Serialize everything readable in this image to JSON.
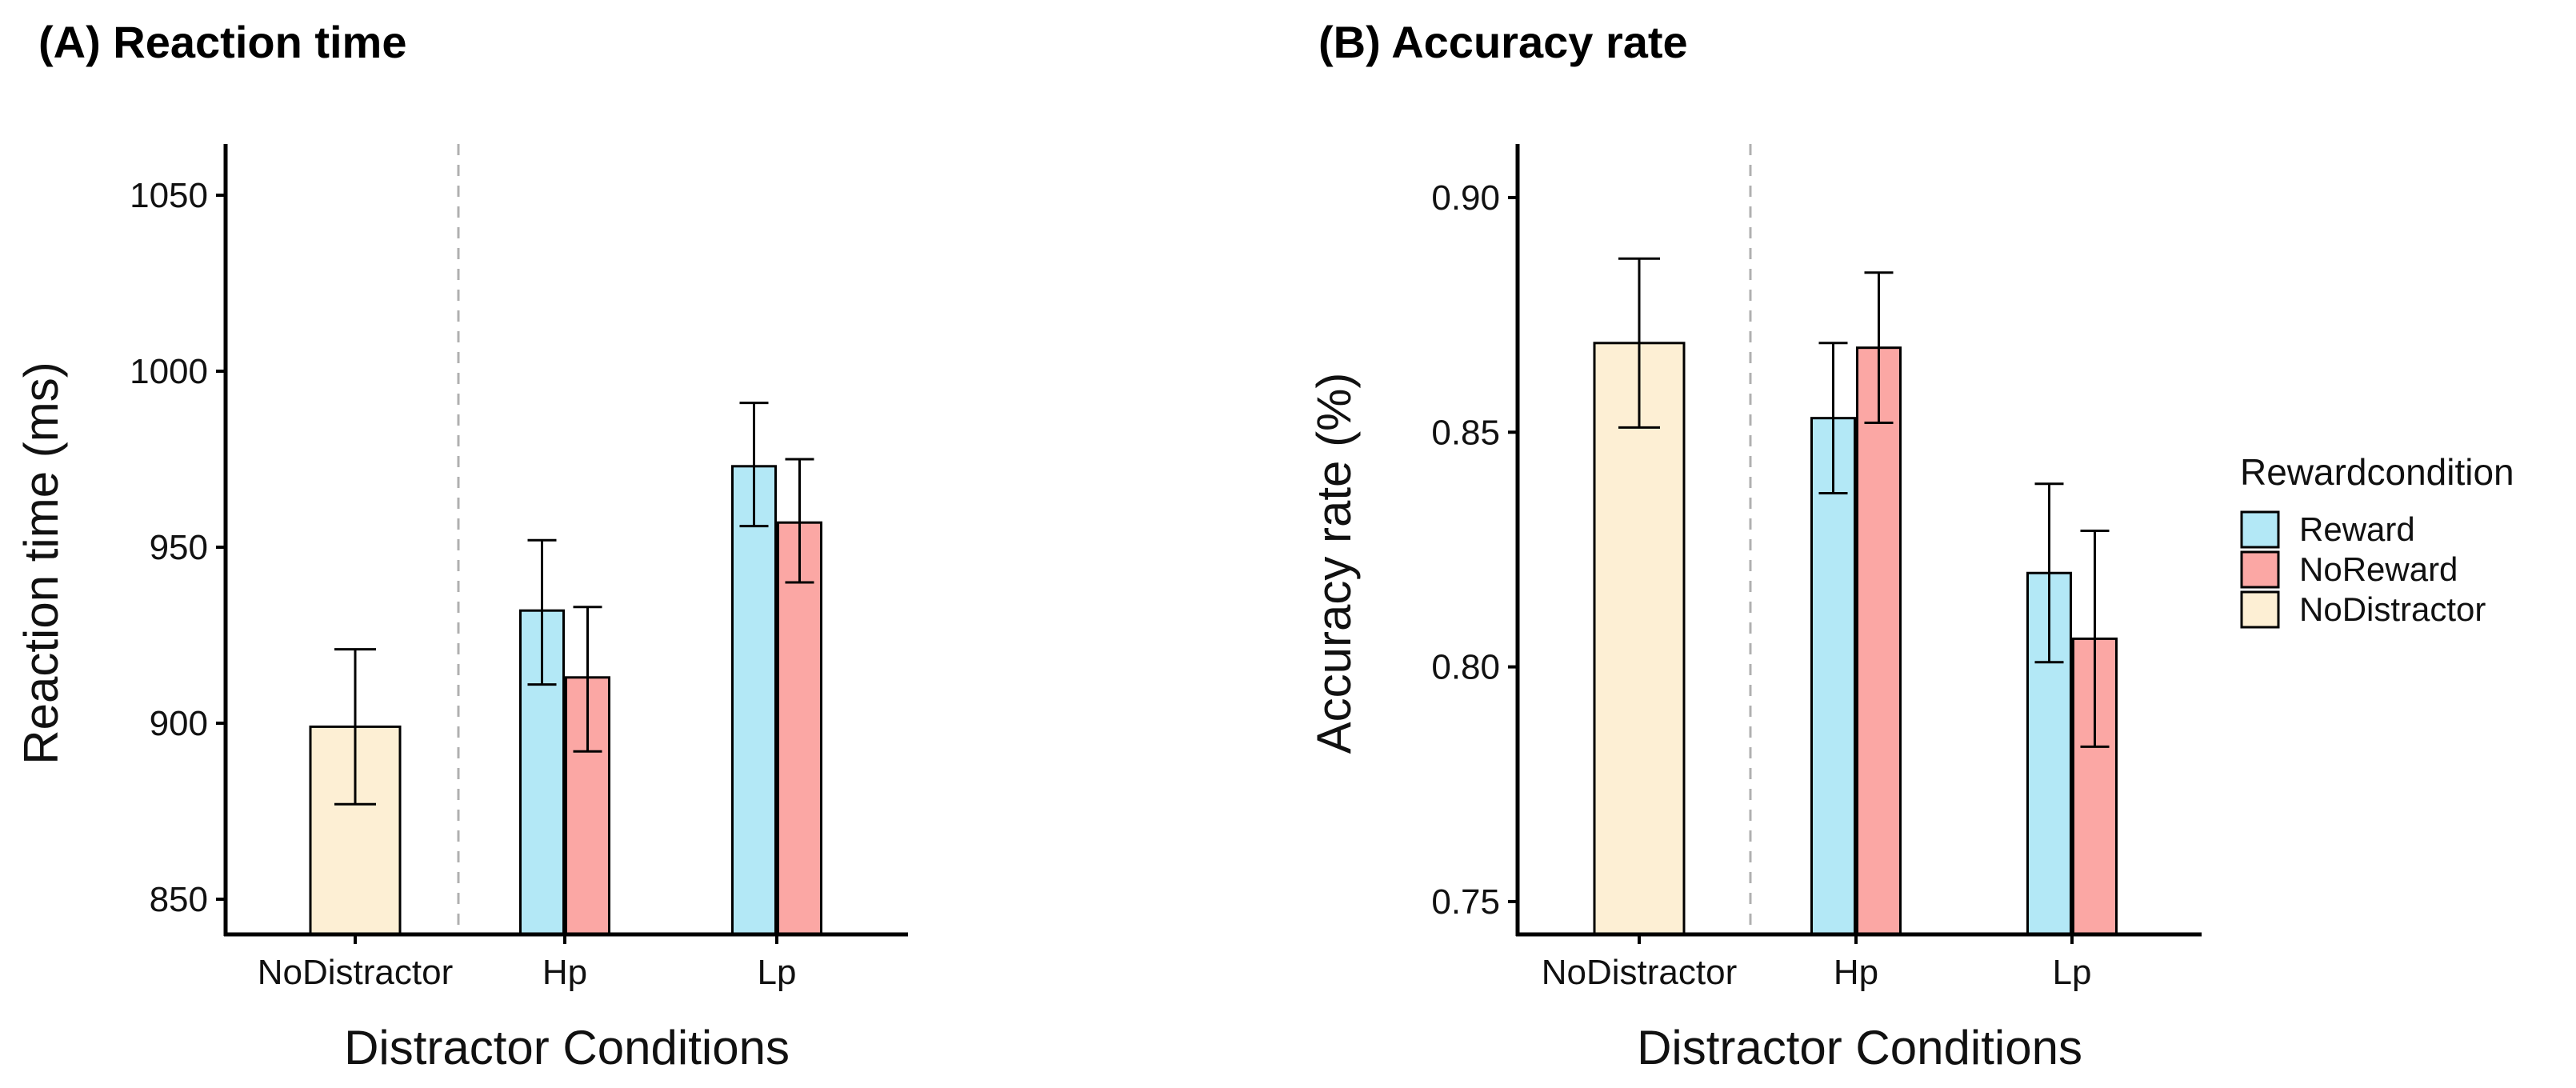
{
  "colors": {
    "Reward": "#b3e8f6",
    "NoReward": "#fba7a4",
    "NoDistractor": "#fdefd4"
  },
  "legend": {
    "title": "Rewardcondition",
    "position": "right",
    "items": [
      {
        "label": "Reward",
        "color_key": "Reward"
      },
      {
        "label": "NoReward",
        "color_key": "NoReward"
      },
      {
        "label": "NoDistractor",
        "color_key": "NoDistractor"
      }
    ]
  },
  "chart_data": [
    {
      "type": "bar",
      "title": "(A) Reaction time",
      "xlabel": "Distractor Conditions",
      "ylabel": "Reaction time (ms)",
      "ylim": [
        840,
        1060
      ],
      "yticks": [
        850,
        900,
        950,
        1000,
        1050
      ],
      "ytick_labels": [
        "850",
        "900",
        "950",
        "1000",
        "1050"
      ],
      "grid": false,
      "categories": [
        "NoDistractor",
        "Hp",
        "Lp"
      ],
      "bars": [
        {
          "category": "NoDistractor",
          "series": "NoDistractor",
          "value": 899,
          "err_low": 877,
          "err_high": 921
        },
        {
          "category": "Hp",
          "series": "Reward",
          "value": 932,
          "err_low": 911,
          "err_high": 952
        },
        {
          "category": "Hp",
          "series": "NoReward",
          "value": 913,
          "err_low": 892,
          "err_high": 933
        },
        {
          "category": "Lp",
          "series": "Reward",
          "value": 973,
          "err_low": 956,
          "err_high": 991
        },
        {
          "category": "Lp",
          "series": "NoReward",
          "value": 957,
          "err_low": 940,
          "err_high": 975
        }
      ]
    },
    {
      "type": "bar",
      "title": "(B) Accuracy rate",
      "xlabel": "Distractor Conditions",
      "ylabel": "Accuracy rate (%)",
      "ylim": [
        0.743,
        0.908
      ],
      "yticks": [
        0.75,
        0.8,
        0.85,
        0.9
      ],
      "ytick_labels": [
        "0.75",
        "0.80",
        "0.85",
        "0.90"
      ],
      "grid": false,
      "categories": [
        "NoDistractor",
        "Hp",
        "Lp"
      ],
      "bars": [
        {
          "category": "NoDistractor",
          "series": "NoDistractor",
          "value": 0.869,
          "err_low": 0.851,
          "err_high": 0.887
        },
        {
          "category": "Hp",
          "series": "Reward",
          "value": 0.853,
          "err_low": 0.837,
          "err_high": 0.869
        },
        {
          "category": "Hp",
          "series": "NoReward",
          "value": 0.868,
          "err_low": 0.852,
          "err_high": 0.884
        },
        {
          "category": "Lp",
          "series": "Reward",
          "value": 0.82,
          "err_low": 0.801,
          "err_high": 0.839
        },
        {
          "category": "Lp",
          "series": "NoReward",
          "value": 0.806,
          "err_low": 0.783,
          "err_high": 0.829
        }
      ]
    }
  ]
}
